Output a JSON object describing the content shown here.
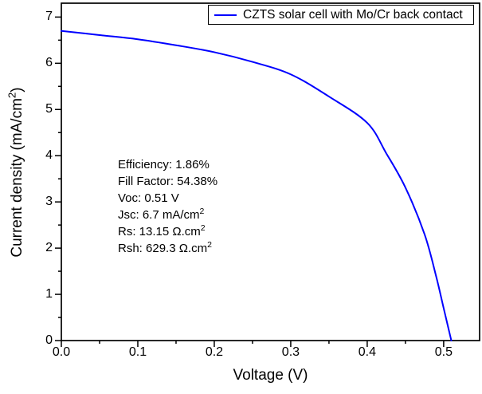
{
  "chart_data": {
    "type": "line",
    "title": "",
    "xlabel": "Voltage (V)",
    "ylabel": "Current density (mA/cm^2)",
    "xlim": [
      0,
      0.547
    ],
    "ylim": [
      0,
      7.3
    ],
    "grid": false,
    "legend_position": "top-right-inside",
    "x_ticks": {
      "major": [
        0.0,
        0.1,
        0.2,
        0.3,
        0.4,
        0.5
      ],
      "labels": [
        "0.0",
        "0.1",
        "0.2",
        "0.3",
        "0.4",
        "0.5"
      ],
      "minor": [
        0.05,
        0.15,
        0.25,
        0.35,
        0.45
      ]
    },
    "y_ticks": {
      "major": [
        0,
        1,
        2,
        3,
        4,
        5,
        6,
        7
      ],
      "labels": [
        "0",
        "1",
        "2",
        "3",
        "4",
        "5",
        "6",
        "7"
      ],
      "minor": [
        0.5,
        1.5,
        2.5,
        3.5,
        4.5,
        5.5,
        6.5
      ]
    },
    "series": [
      {
        "name": "CZTS solar cell with Mo/Cr back contact",
        "color": "#0000ff",
        "points": [
          [
            0.0,
            6.7
          ],
          [
            0.05,
            6.61
          ],
          [
            0.1,
            6.52
          ],
          [
            0.15,
            6.39
          ],
          [
            0.2,
            6.24
          ],
          [
            0.25,
            6.03
          ],
          [
            0.3,
            5.76
          ],
          [
            0.35,
            5.28
          ],
          [
            0.4,
            4.71
          ],
          [
            0.425,
            4.05
          ],
          [
            0.45,
            3.31
          ],
          [
            0.475,
            2.3
          ],
          [
            0.49,
            1.4
          ],
          [
            0.5,
            0.7
          ],
          [
            0.51,
            0.0
          ]
        ]
      }
    ],
    "annotation": {
      "lines": [
        "Efficiency: 1.86%",
        "Fill Factor: 54.38%",
        "Voc: 0.51 V",
        "Jsc: 6.7 mA/cm^2",
        "Rs: 13.15 Ω.cm^2",
        "Rsh: 629.3 Ω.cm^2"
      ]
    }
  },
  "legend": {
    "label": "CZTS solar cell with Mo/Cr back contact",
    "line_color": "#0000ff"
  },
  "colors": {
    "curve": "#0000ff",
    "axis": "#000000",
    "text": "#000000",
    "background": "#ffffff",
    "legend_border": "#000000"
  }
}
